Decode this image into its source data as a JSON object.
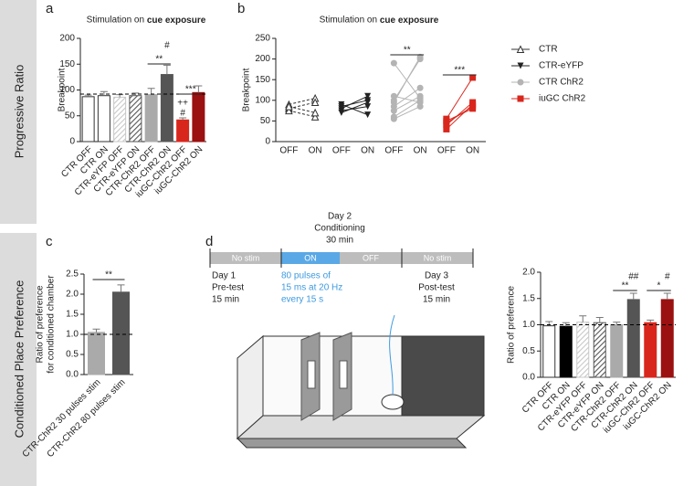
{
  "side_labels": [
    "Progressive Ratio",
    "Conditioned Place Preference"
  ],
  "panel_letters": [
    "a",
    "b",
    "c",
    "d"
  ],
  "timeline": {
    "top": [
      "Day 2",
      "Conditioning",
      "30 min"
    ],
    "segments": [
      "No stim",
      "ON",
      "OFF",
      "No stim"
    ],
    "day1": [
      "Day 1",
      "Pre-test",
      "15 min"
    ],
    "stim": [
      "80 pulses of",
      "15 ms at 20 Hz",
      "every 15 s"
    ],
    "day3": [
      "Day 3",
      "Post-test",
      "15 min"
    ]
  },
  "chart_data": [
    {
      "type": "bar",
      "title": "Stimulation on",
      "title_emphasis": "cue exposure",
      "ylabel": "Breakpoint",
      "categories": [
        "CTR OFF",
        "CTR ON",
        "CTR-eYFP OFF",
        "CTR-eYFP ON",
        "CTR-ChR2 OFF",
        "CTR-ChR2 ON",
        "iuGC-ChR2 OFF",
        "iuGC-ChR2 ON"
      ],
      "values": [
        87,
        89,
        86,
        89,
        91,
        130,
        42,
        95
      ],
      "errors": [
        3,
        8,
        5,
        5,
        12,
        18,
        4,
        13
      ],
      "colors": [
        "#ffffff",
        "#ffffff",
        "#c8c8c8",
        "#555555",
        "#aaaaaa",
        "#555555",
        "#d9261c",
        "#9b1010"
      ],
      "hatched": [
        false,
        false,
        true,
        true,
        false,
        false,
        false,
        false
      ],
      "reference_line": 92,
      "ylim": [
        0,
        200
      ],
      "yticks": [
        0,
        50,
        100,
        150,
        200
      ],
      "annotations": [
        "**",
        "#",
        "***",
        "++",
        "#"
      ]
    },
    {
      "type": "paired-scatter",
      "title": "Stimulation on",
      "title_emphasis": "cue exposure",
      "ylabel": "Breakpoint",
      "categories": [
        "OFF",
        "ON",
        "OFF",
        "ON",
        "OFF",
        "ON",
        "OFF",
        "ON"
      ],
      "series": [
        {
          "name": "CTR",
          "color": "#333333",
          "marker": "triangle-open",
          "off": [
            90,
            80,
            75,
            85
          ],
          "on": [
            105,
            95,
            60,
            70
          ]
        },
        {
          "name": "CTR-eYFP",
          "color": "#222222",
          "marker": "triangle-down",
          "off": [
            85,
            80,
            75,
            90,
            70
          ],
          "on": [
            100,
            110,
            85,
            65,
            95
          ]
        },
        {
          "name": "CTR ChR2",
          "color": "#b4b4b4",
          "marker": "circle",
          "off": [
            95,
            100,
            75,
            60,
            55,
            85,
            110,
            190
          ],
          "on": [
            205,
            200,
            110,
            100,
            85,
            130,
            95,
            105
          ]
        },
        {
          "name": "iuGC ChR2",
          "color": "#d9261c",
          "marker": "square",
          "off": [
            55,
            40,
            30,
            50,
            45
          ],
          "on": [
            155,
            95,
            90,
            80,
            85
          ]
        }
      ],
      "ylim": [
        0,
        250
      ],
      "yticks": [
        0,
        50,
        100,
        150,
        200,
        250
      ],
      "annotations": [
        "**",
        "***"
      ]
    },
    {
      "type": "bar",
      "ylabel": [
        "Ratio of preference",
        "for conditioned chamber"
      ],
      "categories": [
        "CTR-ChR2 30 pulses stim",
        "CTR-ChR2 80 pulses stim"
      ],
      "values": [
        1.05,
        2.05
      ],
      "errors": [
        0.08,
        0.18
      ],
      "colors": [
        "#aaaaaa",
        "#555555"
      ],
      "hatched": [
        false,
        false
      ],
      "reference_line": 1,
      "ylim": [
        0,
        2.5
      ],
      "yticks": [
        {
          "value": 0,
          "label": "0.0"
        },
        0.5,
        {
          "value": 1,
          "label": "1.0"
        },
        1.5,
        {
          "value": 2,
          "label": "2.0"
        },
        2.5
      ],
      "annotations": [
        "**"
      ]
    },
    {
      "type": "bar",
      "ylabel": "Ratio of preference",
      "categories": [
        "CTR OFF",
        "CTR ON",
        "CTR-eYFP OFF",
        "CTR-eYFP ON",
        "CTR-ChR2 OFF",
        "CTR-ChR2 ON",
        "iuGC-ChR2 OFF",
        "iuGC-ChR2 ON"
      ],
      "values": [
        0.98,
        0.97,
        1.05,
        1.04,
        1.0,
        1.48,
        1.04,
        1.48
      ],
      "errors": [
        0.08,
        0.07,
        0.12,
        0.1,
        0.05,
        0.12,
        0.05,
        0.12
      ],
      "colors": [
        "#ffffff",
        "#000000",
        "#c8c8c8",
        "#555555",
        "#aaaaaa",
        "#555555",
        "#d9261c",
        "#9b1010"
      ],
      "hatched": [
        false,
        false,
        true,
        true,
        false,
        false,
        false,
        false
      ],
      "reference_line": 1,
      "ylim": [
        0,
        2
      ],
      "yticks": [
        {
          "value": 0,
          "label": "0.0"
        },
        0.5,
        {
          "value": 1,
          "label": "1.0"
        },
        1.5,
        {
          "value": 2,
          "label": "2.0"
        }
      ],
      "annotations": [
        "**",
        "##",
        "*",
        "#"
      ]
    }
  ]
}
